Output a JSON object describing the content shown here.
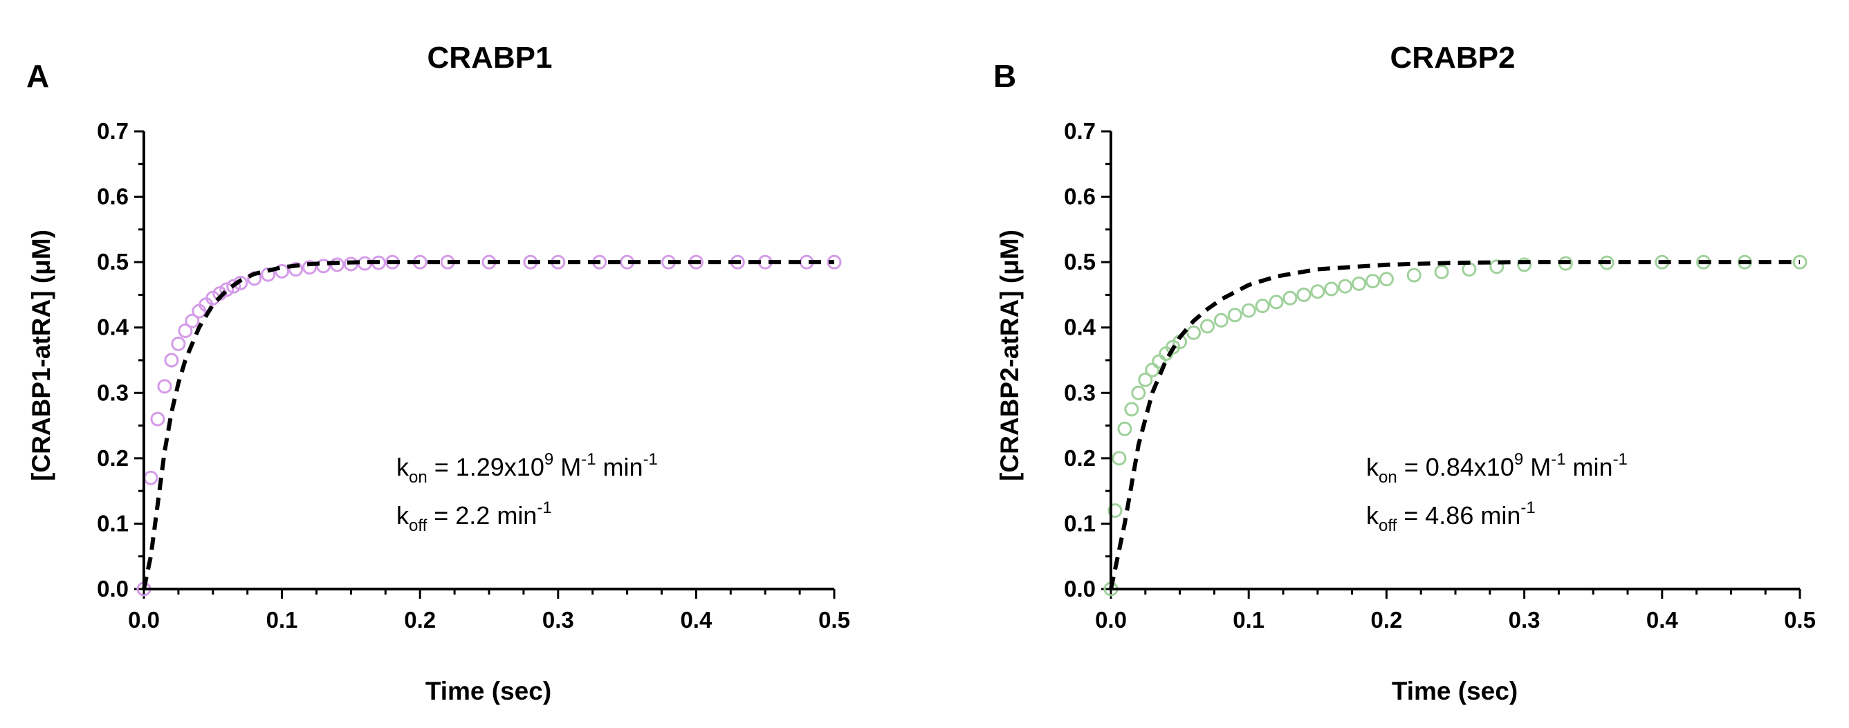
{
  "chart_data": [
    {
      "type": "scatter",
      "panel_letter": "A",
      "title": "CRABP1",
      "xlabel": "Time (sec)",
      "ylabel": "[CRABP1-atRA] (μM)",
      "xlim": [
        0,
        0.5
      ],
      "ylim": [
        0,
        0.7
      ],
      "x_ticks": [
        "0.0",
        "0.1",
        "0.2",
        "0.3",
        "0.4",
        "0.5"
      ],
      "y_ticks": [
        "0.0",
        "0.1",
        "0.2",
        "0.3",
        "0.4",
        "0.5",
        "0.6",
        "0.7"
      ],
      "marker_color": "#d49be8",
      "fit_color": "#000000",
      "series": [
        {
          "name": "observed",
          "style": "open-circles",
          "x": [
            0,
            0.005,
            0.01,
            0.015,
            0.02,
            0.025,
            0.03,
            0.035,
            0.04,
            0.045,
            0.05,
            0.055,
            0.06,
            0.065,
            0.07,
            0.08,
            0.09,
            0.1,
            0.11,
            0.12,
            0.13,
            0.14,
            0.15,
            0.16,
            0.17,
            0.18,
            0.2,
            0.22,
            0.25,
            0.28,
            0.3,
            0.33,
            0.35,
            0.38,
            0.4,
            0.43,
            0.45,
            0.48,
            0.5
          ],
          "y": [
            0.0,
            0.17,
            0.26,
            0.31,
            0.35,
            0.375,
            0.395,
            0.41,
            0.425,
            0.435,
            0.445,
            0.452,
            0.458,
            0.463,
            0.468,
            0.475,
            0.481,
            0.486,
            0.489,
            0.492,
            0.494,
            0.496,
            0.497,
            0.498,
            0.499,
            0.5,
            0.5,
            0.5,
            0.5,
            0.5,
            0.5,
            0.5,
            0.5,
            0.5,
            0.5,
            0.5,
            0.5,
            0.5,
            0.5
          ]
        },
        {
          "name": "fit",
          "style": "dashed-line",
          "x": [
            0,
            0.005,
            0.01,
            0.015,
            0.02,
            0.025,
            0.03,
            0.04,
            0.05,
            0.06,
            0.07,
            0.08,
            0.1,
            0.12,
            0.14,
            0.16,
            0.18,
            0.2,
            0.3,
            0.4,
            0.5
          ],
          "y": [
            0.0,
            0.05,
            0.13,
            0.21,
            0.27,
            0.315,
            0.35,
            0.4,
            0.435,
            0.457,
            0.472,
            0.482,
            0.492,
            0.497,
            0.499,
            0.5,
            0.5,
            0.5,
            0.5,
            0.5,
            0.5
          ]
        }
      ],
      "annotation": {
        "line1_k": "k",
        "line1_sub": "on",
        "line1_eq": " = 1.29x10",
        "line1_exp": "9",
        "line1_unit1": " M",
        "line1_exp2": "-1",
        "line1_unit2": " min",
        "line1_exp3": "-1",
        "line2_k": "k",
        "line2_sub": "off",
        "line2_eq": " = 2.2 min",
        "line2_exp": "-1"
      }
    },
    {
      "type": "scatter",
      "panel_letter": "B",
      "title": "CRABP2",
      "xlabel": "Time (sec)",
      "ylabel": "[CRABP2-atRA] (μM)",
      "xlim": [
        0,
        0.5
      ],
      "ylim": [
        0,
        0.7
      ],
      "x_ticks": [
        "0.0",
        "0.1",
        "0.2",
        "0.3",
        "0.4",
        "0.5"
      ],
      "y_ticks": [
        "0.0",
        "0.1",
        "0.2",
        "0.3",
        "0.4",
        "0.5",
        "0.6",
        "0.7"
      ],
      "marker_color": "#9fd19b",
      "fit_color": "#000000",
      "series": [
        {
          "name": "observed",
          "style": "open-circles",
          "x": [
            0,
            0.003,
            0.006,
            0.01,
            0.015,
            0.02,
            0.025,
            0.03,
            0.035,
            0.04,
            0.045,
            0.05,
            0.06,
            0.07,
            0.08,
            0.09,
            0.1,
            0.11,
            0.12,
            0.13,
            0.14,
            0.15,
            0.16,
            0.17,
            0.18,
            0.19,
            0.2,
            0.22,
            0.24,
            0.26,
            0.28,
            0.3,
            0.33,
            0.36,
            0.4,
            0.43,
            0.46,
            0.5
          ],
          "y": [
            0.0,
            0.12,
            0.2,
            0.245,
            0.275,
            0.3,
            0.32,
            0.335,
            0.348,
            0.36,
            0.37,
            0.378,
            0.392,
            0.402,
            0.411,
            0.419,
            0.426,
            0.433,
            0.439,
            0.445,
            0.45,
            0.455,
            0.459,
            0.463,
            0.467,
            0.471,
            0.474,
            0.48,
            0.485,
            0.489,
            0.493,
            0.496,
            0.498,
            0.499,
            0.5,
            0.5,
            0.5,
            0.5
          ]
        },
        {
          "name": "fit",
          "style": "dashed-line",
          "x": [
            0,
            0.005,
            0.01,
            0.015,
            0.02,
            0.03,
            0.04,
            0.05,
            0.06,
            0.07,
            0.08,
            0.1,
            0.12,
            0.15,
            0.2,
            0.25,
            0.3,
            0.4,
            0.5
          ],
          "y": [
            0.0,
            0.05,
            0.1,
            0.16,
            0.22,
            0.3,
            0.35,
            0.385,
            0.41,
            0.428,
            0.443,
            0.465,
            0.478,
            0.489,
            0.496,
            0.499,
            0.5,
            0.5,
            0.5
          ]
        }
      ],
      "annotation": {
        "line1_k": "k",
        "line1_sub": "on",
        "line1_eq": " = 0.84x10",
        "line1_exp": "9",
        "line1_unit1": " M",
        "line1_exp2": "-1",
        "line1_unit2": " min",
        "line1_exp3": "-1",
        "line2_k": "k",
        "line2_sub": "off",
        "line2_eq": " = 4.86 min",
        "line2_exp": "-1"
      }
    }
  ]
}
